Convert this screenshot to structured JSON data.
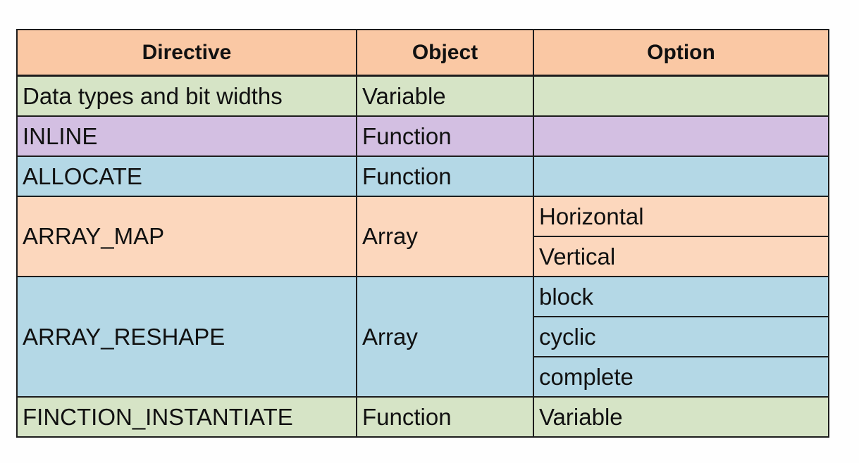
{
  "table": {
    "headers": {
      "directive": "Directive",
      "object": "Object",
      "option": "Option"
    },
    "rows": [
      {
        "directive": "Data types and bit widths",
        "object": "Variable",
        "options": [
          ""
        ]
      },
      {
        "directive": "INLINE",
        "object": "Function",
        "options": [
          ""
        ]
      },
      {
        "directive": "ALLOCATE",
        "object": "Function",
        "options": [
          ""
        ]
      },
      {
        "directive": "ARRAY_MAP",
        "object": "Array",
        "options": [
          "Horizontal",
          "Vertical"
        ]
      },
      {
        "directive": "ARRAY_RESHAPE",
        "object": "Array",
        "options": [
          "block",
          "cyclic",
          "complete"
        ]
      },
      {
        "directive": "FINCTION_INSTANTIATE",
        "object": "Function",
        "options": [
          "Variable"
        ]
      }
    ]
  },
  "colors": {
    "header": "#fac8a4",
    "green": "#d6e4c6",
    "purple": "#d3bfe2",
    "blue": "#b4d8e6",
    "peach": "#fcd7bd",
    "border": "#1d1d1d"
  }
}
